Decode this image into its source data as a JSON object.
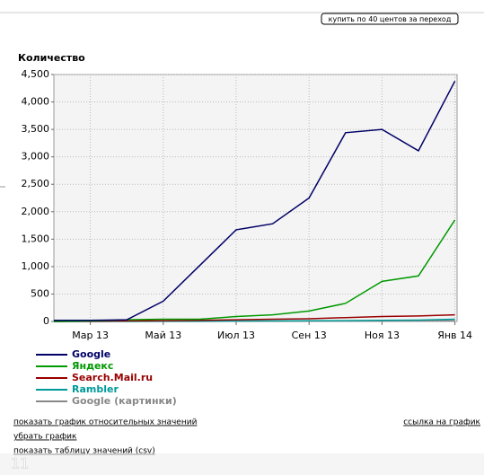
{
  "chart_data": {
    "type": "line",
    "y_label": "Количество",
    "categories": [
      null,
      "Мар 13",
      null,
      "Май 13",
      null,
      "Июл 13",
      null,
      "Сен 13",
      null,
      "Ноя 13",
      null,
      "Янв 14"
    ],
    "series": [
      {
        "name": "Google",
        "color": "#000066",
        "values": [
          20,
          20,
          30,
          370,
          1020,
          1670,
          1780,
          2250,
          3440,
          3500,
          3110,
          4380
        ]
      },
      {
        "name": "Яндекс",
        "color": "#009900",
        "values": [
          0,
          10,
          30,
          40,
          40,
          90,
          120,
          190,
          330,
          730,
          830,
          1850
        ]
      },
      {
        "name": "Search.Mail.ru",
        "color": "#990000",
        "values": [
          0,
          5,
          10,
          15,
          20,
          30,
          40,
          50,
          70,
          90,
          100,
          120
        ]
      },
      {
        "name": "Rambler",
        "color": "#009999",
        "values": [
          0,
          2,
          3,
          5,
          5,
          8,
          10,
          12,
          15,
          20,
          25,
          40
        ]
      },
      {
        "name": "Google (картинки)",
        "color": "#888888",
        "values": [
          0,
          1,
          2,
          3,
          3,
          5,
          5,
          8,
          10,
          10,
          12,
          15
        ]
      }
    ],
    "ylim": [
      0,
      4500
    ],
    "yticks": [
      0,
      500,
      {
        "value": 1000,
        "label": "1,000"
      },
      {
        "value": 1500,
        "label": "1,500"
      },
      {
        "value": 2000,
        "label": "2,000"
      },
      {
        "value": 2500,
        "label": "2,500"
      },
      {
        "value": 3000,
        "label": "3,000"
      },
      {
        "value": 3500,
        "label": "3,500"
      },
      {
        "value": 4000,
        "label": "4,000"
      },
      {
        "value": 4500,
        "label": "4,500"
      }
    ],
    "grid": true
  },
  "buy_button": "купить по 40 центов за переход",
  "links": {
    "relative": "показать график относительных значений",
    "remove": "убрать график",
    "table": "показать таблицу значений (csv)",
    "chart_link": "ссылка на график"
  },
  "page_number": "11"
}
